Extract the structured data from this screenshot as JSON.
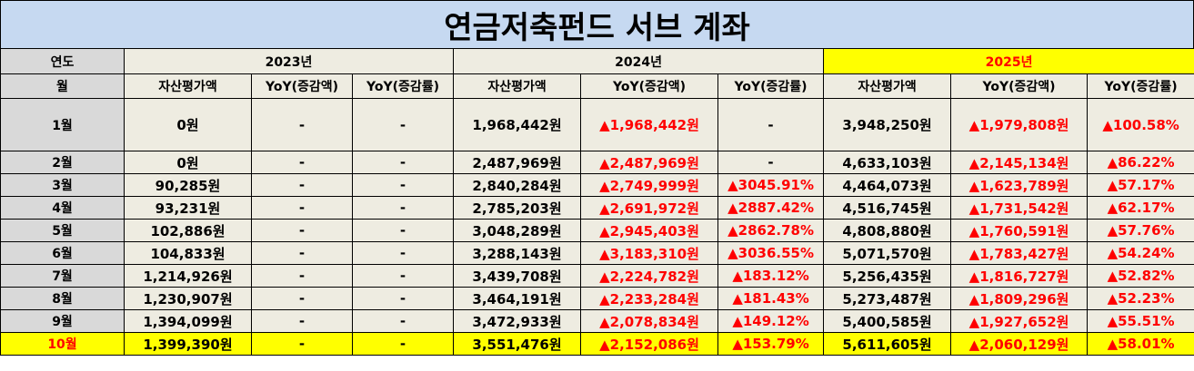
{
  "title": "연금저축펀드 서브 계좌",
  "header": {
    "year_label": "연도",
    "month_label": "월",
    "years": [
      "2023년",
      "2024년",
      "2025년"
    ],
    "columns": [
      "자산평가액",
      "YoY(증감액)",
      "YoY(증감률)"
    ]
  },
  "rows": [
    {
      "month": "1월",
      "y2023": [
        "0원",
        "-",
        "-"
      ],
      "y2024": [
        "1,968,442원",
        "▲1,968,442원",
        "-"
      ],
      "y2025": [
        "3,948,250원",
        "▲1,979,808원",
        "▲100.58%"
      ]
    },
    {
      "month": "2월",
      "y2023": [
        "0원",
        "-",
        "-"
      ],
      "y2024": [
        "2,487,969원",
        "▲2,487,969원",
        "-"
      ],
      "y2025": [
        "4,633,103원",
        "▲2,145,134원",
        "▲86.22%"
      ]
    },
    {
      "month": "3월",
      "y2023": [
        "90,285원",
        "-",
        "-"
      ],
      "y2024": [
        "2,840,284원",
        "▲2,749,999원",
        "▲3045.91%"
      ],
      "y2025": [
        "4,464,073원",
        "▲1,623,789원",
        "▲57.17%"
      ]
    },
    {
      "month": "4월",
      "y2023": [
        "93,231원",
        "-",
        "-"
      ],
      "y2024": [
        "2,785,203원",
        "▲2,691,972원",
        "▲2887.42%"
      ],
      "y2025": [
        "4,516,745원",
        "▲1,731,542원",
        "▲62.17%"
      ]
    },
    {
      "month": "5월",
      "y2023": [
        "102,886원",
        "-",
        "-"
      ],
      "y2024": [
        "3,048,289원",
        "▲2,945,403원",
        "▲2862.78%"
      ],
      "y2025": [
        "4,808,880원",
        "▲1,760,591원",
        "▲57.76%"
      ]
    },
    {
      "month": "6월",
      "y2023": [
        "104,833원",
        "-",
        "-"
      ],
      "y2024": [
        "3,288,143원",
        "▲3,183,310원",
        "▲3036.55%"
      ],
      "y2025": [
        "5,071,570원",
        "▲1,783,427원",
        "▲54.24%"
      ]
    },
    {
      "month": "7월",
      "y2023": [
        "1,214,926원",
        "-",
        "-"
      ],
      "y2024": [
        "3,439,708원",
        "▲2,224,782원",
        "▲183.12%"
      ],
      "y2025": [
        "5,256,435원",
        "▲1,816,727원",
        "▲52.82%"
      ]
    },
    {
      "month": "8월",
      "y2023": [
        "1,230,907원",
        "-",
        "-"
      ],
      "y2024": [
        "3,464,191원",
        "▲2,233,284원",
        "▲181.43%"
      ],
      "y2025": [
        "5,273,487원",
        "▲1,809,296원",
        "▲52.23%"
      ]
    },
    {
      "month": "9월",
      "y2023": [
        "1,394,099원",
        "-",
        "-"
      ],
      "y2024": [
        "3,472,933원",
        "▲2,078,834원",
        "▲149.12%"
      ],
      "y2025": [
        "5,400,585원",
        "▲1,927,652원",
        "▲55.51%"
      ]
    },
    {
      "month": "10월",
      "y2023": [
        "1,399,390원",
        "-",
        "-"
      ],
      "y2024": [
        "3,551,476원",
        "▲2,152,086원",
        "▲153.79%"
      ],
      "y2025": [
        "5,611,605원",
        "▲2,060,129원",
        "▲58.01%"
      ]
    }
  ],
  "colors": {
    "header_gray": "#d9d9d9",
    "beige": "#eeece1",
    "highlight": "#ffff00",
    "increase": "#ff0000",
    "title_bg": "#c6d9f1"
  }
}
